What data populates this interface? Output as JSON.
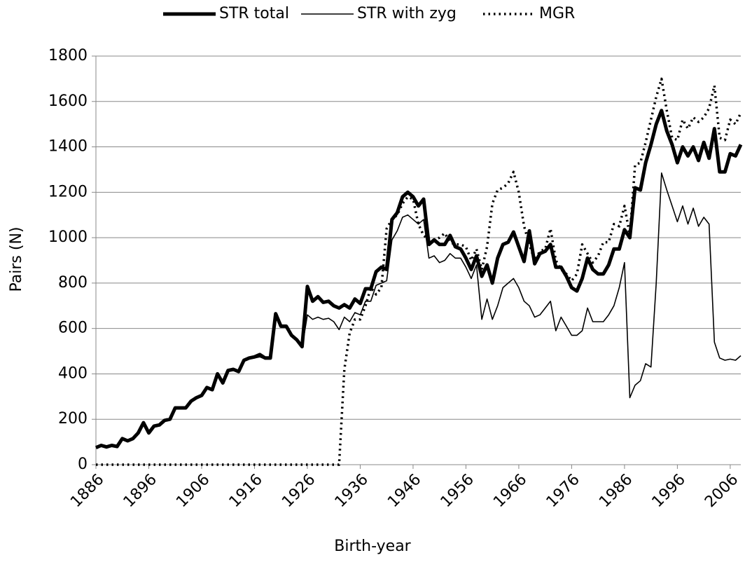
{
  "chart_data": {
    "type": "line",
    "x_label": "Birth-year",
    "y_label": "Pairs (N)",
    "x": [
      1886,
      1887,
      1888,
      1889,
      1890,
      1891,
      1892,
      1893,
      1894,
      1895,
      1896,
      1897,
      1898,
      1899,
      1900,
      1901,
      1902,
      1903,
      1904,
      1905,
      1906,
      1907,
      1908,
      1909,
      1910,
      1911,
      1912,
      1913,
      1914,
      1915,
      1916,
      1917,
      1918,
      1919,
      1920,
      1921,
      1922,
      1923,
      1924,
      1925,
      1926,
      1927,
      1928,
      1929,
      1930,
      1931,
      1932,
      1933,
      1934,
      1935,
      1936,
      1937,
      1938,
      1939,
      1940,
      1941,
      1942,
      1943,
      1944,
      1945,
      1946,
      1947,
      1948,
      1949,
      1950,
      1951,
      1952,
      1953,
      1954,
      1955,
      1956,
      1957,
      1958,
      1959,
      1960,
      1961,
      1962,
      1963,
      1964,
      1965,
      1966,
      1967,
      1968,
      1969,
      1970,
      1971,
      1972,
      1973,
      1974,
      1975,
      1976,
      1977,
      1978,
      1979,
      1980,
      1981,
      1982,
      1983,
      1984,
      1985,
      1986,
      1987,
      1988,
      1989,
      1990,
      1991,
      1992,
      1993,
      1994,
      1995,
      1996,
      1997,
      1998,
      1999,
      2000,
      2001,
      2002,
      2003,
      2004,
      2005,
      2006,
      2007,
      2008
    ],
    "series": [
      {
        "name": "STR total",
        "color": "#000000",
        "style": "thick",
        "values": [
          75,
          85,
          78,
          85,
          80,
          115,
          105,
          115,
          140,
          185,
          140,
          170,
          175,
          195,
          200,
          250,
          250,
          250,
          280,
          295,
          305,
          340,
          330,
          400,
          360,
          415,
          420,
          410,
          460,
          470,
          475,
          485,
          470,
          470,
          665,
          610,
          610,
          570,
          550,
          520,
          785,
          720,
          740,
          715,
          720,
          700,
          690,
          705,
          690,
          730,
          710,
          775,
          775,
          850,
          870,
          860,
          1080,
          1110,
          1180,
          1200,
          1180,
          1140,
          1170,
          970,
          990,
          970,
          970,
          1010,
          960,
          950,
          910,
          860,
          920,
          830,
          880,
          800,
          910,
          970,
          980,
          1025,
          960,
          895,
          1030,
          885,
          930,
          940,
          970,
          870,
          870,
          830,
          780,
          765,
          820,
          910,
          860,
          840,
          840,
          880,
          950,
          950,
          1035,
          1000,
          1220,
          1210,
          1330,
          1410,
          1500,
          1560,
          1470,
          1410,
          1330,
          1400,
          1360,
          1400,
          1340,
          1420,
          1350,
          1480,
          1290,
          1290,
          1370,
          1360,
          1410
        ]
      },
      {
        "name": "STR with zyg",
        "color": "#000000",
        "style": "thin",
        "values": [
          75,
          85,
          78,
          85,
          80,
          115,
          105,
          115,
          140,
          180,
          140,
          170,
          175,
          190,
          200,
          245,
          245,
          245,
          275,
          290,
          300,
          335,
          325,
          390,
          355,
          410,
          415,
          410,
          455,
          465,
          470,
          475,
          465,
          465,
          660,
          605,
          605,
          565,
          545,
          515,
          660,
          640,
          650,
          640,
          645,
          630,
          595,
          650,
          630,
          670,
          660,
          720,
          720,
          790,
          800,
          810,
          990,
          1030,
          1090,
          1100,
          1080,
          1060,
          1080,
          910,
          920,
          890,
          900,
          930,
          910,
          910,
          870,
          820,
          880,
          640,
          730,
          640,
          700,
          780,
          800,
          820,
          780,
          720,
          700,
          650,
          660,
          690,
          720,
          590,
          650,
          610,
          570,
          570,
          590,
          690,
          630,
          630,
          630,
          660,
          700,
          780,
          890,
          295,
          350,
          370,
          445,
          430,
          800,
          1285,
          1210,
          1140,
          1070,
          1140,
          1060,
          1130,
          1050,
          1090,
          1060,
          540,
          470,
          460,
          465,
          460,
          480
        ]
      },
      {
        "name": "MGR",
        "color": "#000000",
        "style": "dotted",
        "values": [
          0,
          0,
          0,
          0,
          0,
          0,
          0,
          0,
          0,
          0,
          0,
          0,
          0,
          0,
          0,
          0,
          0,
          0,
          0,
          0,
          0,
          0,
          0,
          0,
          0,
          0,
          0,
          0,
          0,
          0,
          0,
          0,
          0,
          0,
          0,
          0,
          0,
          0,
          0,
          0,
          0,
          0,
          0,
          0,
          0,
          0,
          0,
          420,
          580,
          640,
          640,
          700,
          780,
          750,
          780,
          1040,
          1080,
          1100,
          1150,
          1180,
          1170,
          1060,
          1010,
          990,
          990,
          1000,
          1020,
          980,
          970,
          970,
          960,
          900,
          950,
          860,
          960,
          1150,
          1210,
          1220,
          1240,
          1290,
          1200,
          1050,
          970,
          900,
          940,
          950,
          1040,
          900,
          860,
          840,
          810,
          840,
          970,
          930,
          890,
          920,
          980,
          980,
          1060,
          1050,
          1140,
          1010,
          1320,
          1330,
          1420,
          1520,
          1620,
          1700,
          1560,
          1440,
          1430,
          1520,
          1480,
          1530,
          1510,
          1530,
          1570,
          1670,
          1440,
          1430,
          1520,
          1500,
          1550
        ]
      }
    ],
    "xlim": [
      1886,
      2008
    ],
    "xticks": [
      1886,
      1896,
      1906,
      1916,
      1926,
      1936,
      1946,
      1956,
      1966,
      1976,
      1986,
      1996,
      2006
    ],
    "ylim": [
      0,
      1800
    ],
    "yticks": [
      0,
      200,
      400,
      600,
      800,
      1000,
      1200,
      1400,
      1600,
      1800
    ],
    "grid": true,
    "legend": "top"
  }
}
